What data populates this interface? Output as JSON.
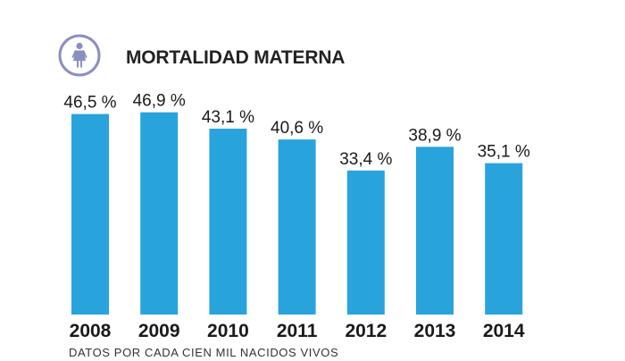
{
  "colors": {
    "bar": "#29a3dc",
    "icon_stroke": "#8a8fbf",
    "text": "#1a1a1a"
  },
  "icon": "woman-icon",
  "chart_data": {
    "type": "bar",
    "title": "MORTALIDAD MATERNA",
    "categories": [
      "2008",
      "2009",
      "2010",
      "2011",
      "2012",
      "2013",
      "2014"
    ],
    "values": [
      46.5,
      46.9,
      43.1,
      40.6,
      33.4,
      38.9,
      35.1
    ],
    "value_labels": [
      "46,5 %",
      "46,9 %",
      "43,1 %",
      "40,6 %",
      "33,4 %",
      "38,9 %",
      "35,1 %"
    ],
    "xlabel": "",
    "ylabel": "",
    "ylim": [
      0,
      50
    ],
    "grid": false,
    "footnote": "DATOS POR CADA CIEN MIL NACIDOS VIVOS"
  }
}
